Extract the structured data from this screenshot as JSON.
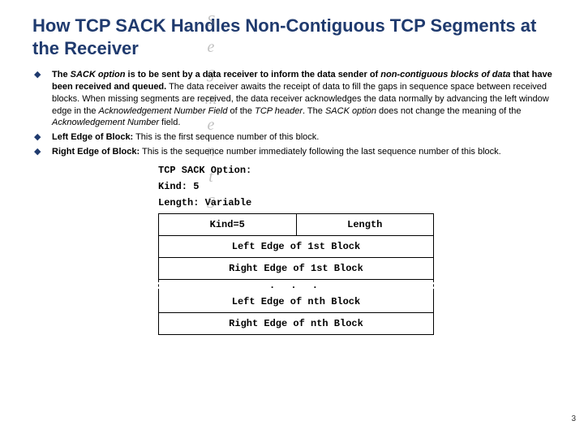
{
  "title": "How TCP SACK Handles Non-Contiguous TCP Segments at the Receiver",
  "bullets": [
    {
      "runs": [
        {
          "t": "The ",
          "cls": "b"
        },
        {
          "t": "SACK option",
          "cls": "bi"
        },
        {
          "t": " is to be sent by a data receiver to inform the data sender of ",
          "cls": "b"
        },
        {
          "t": "non-contiguous blocks of data",
          "cls": "bi"
        },
        {
          "t": " that have been received and queued.",
          "cls": "b"
        },
        {
          "t": " The data receiver awaits the receipt of data to fill the gaps in sequence space between received blocks. When missing segments are received, the data receiver acknowledges the data normally by advancing the left window edge in the ",
          "cls": ""
        },
        {
          "t": "Acknowledgement Number Field",
          "cls": "i"
        },
        {
          "t": " of the ",
          "cls": ""
        },
        {
          "t": "TCP header",
          "cls": "i"
        },
        {
          "t": ". The ",
          "cls": ""
        },
        {
          "t": "SACK option",
          "cls": "i"
        },
        {
          "t": " does not change the meaning of the ",
          "cls": ""
        },
        {
          "t": "Acknowledgement Number",
          "cls": "i"
        },
        {
          "t": " field.",
          "cls": ""
        }
      ]
    },
    {
      "runs": [
        {
          "t": "Left Edge of Block:",
          "cls": "b"
        },
        {
          "t": " This is the first sequence number of this block.",
          "cls": ""
        }
      ]
    },
    {
      "runs": [
        {
          "t": "Right Edge of Block:",
          "cls": "b"
        },
        {
          "t": " This is the sequence number immediately following the last sequence number of this block.",
          "cls": ""
        }
      ]
    }
  ],
  "diagram": {
    "heading": "TCP SACK Option:",
    "kind_line": "Kind: 5",
    "length_line": "Length: Variable",
    "row1": [
      "Kind=5",
      "Length"
    ],
    "row2": "Left Edge of 1st Block",
    "row3": "Right Edge of 1st Block",
    "mid": ". . .",
    "row4": "Left Edge of nth Block",
    "row5": "Right Edge of nth Block"
  },
  "watermark_letters": [
    "S",
    "e",
    "g",
    "m",
    "e",
    "n",
    "t",
    "S"
  ],
  "pagenum": "3",
  "colors": {
    "title": "#1f3a6e",
    "bullet_marker": "#1f3a6e",
    "text": "#000000",
    "bg": "#ffffff"
  }
}
